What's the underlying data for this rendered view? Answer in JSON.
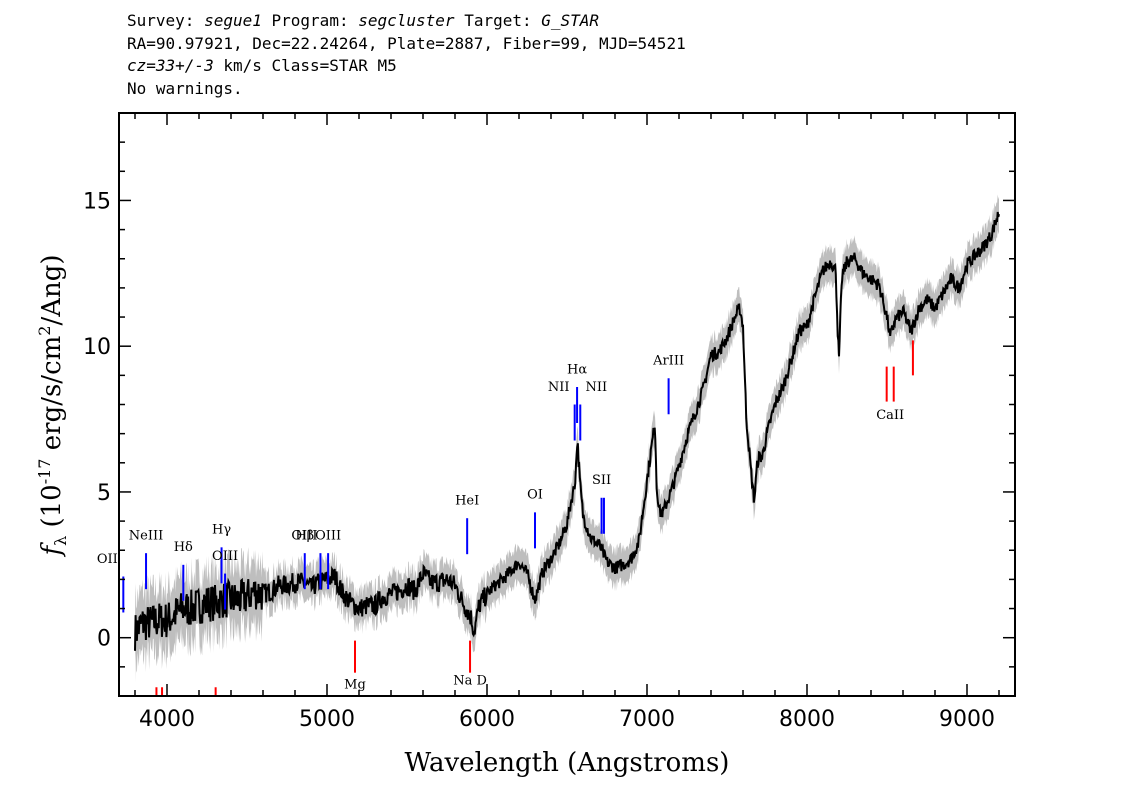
{
  "header": {
    "survey_label": "Survey:",
    "survey": "segue1",
    "program_label": "Program:",
    "program": "segcluster",
    "target_label": "Target:",
    "target": "G_STAR",
    "line2": "RA=90.97921, Dec=22.24264, Plate=2887, Fiber=99, MJD=54521",
    "cz_value": "cz=33+/-3",
    "cz_rest": " km/s Class=STAR M5",
    "line4": "No warnings."
  },
  "chart_data": {
    "type": "line",
    "xlabel": "Wavelength (Angstroms)",
    "ylabel": "f_λ (10^-17 erg/s/cm^2/Ang)",
    "ylabel_parts": {
      "f": "f",
      "sub": "λ",
      "a": " (10",
      "exp1": "-17",
      "b": " erg/s/cm",
      "exp2": "2",
      "c": "/Ang)"
    },
    "xlim": [
      3700,
      9300
    ],
    "ylim": [
      -2,
      18
    ],
    "x_ticks": [
      4000,
      5000,
      6000,
      7000,
      8000,
      9000
    ],
    "x_tick_labels": [
      "4000",
      "5000",
      "6000",
      "7000",
      "8000",
      "9000"
    ],
    "y_ticks": [
      0,
      5,
      10,
      15
    ],
    "y_tick_labels": [
      "0",
      "5",
      "10",
      "15"
    ],
    "colors": {
      "spectrum": "#000000",
      "error_band": "#bebebe",
      "emission": "#0000ff",
      "absorption": "#ff0000"
    },
    "series": [
      {
        "x": [
          3800,
          3850,
          3900,
          3950,
          4000,
          4050,
          4100,
          4150,
          4200,
          4250,
          4300,
          4350,
          4400,
          4450,
          4500,
          4550,
          4600,
          4650,
          4700,
          4750,
          4800,
          4850,
          4900,
          4950,
          5000,
          5050,
          5100,
          5150,
          5200,
          5250,
          5300,
          5350,
          5400,
          5450,
          5500,
          5550,
          5600,
          5650,
          5700,
          5750,
          5800,
          5850,
          5900,
          5920,
          5950,
          6000,
          6050,
          6100,
          6150,
          6200,
          6250,
          6300,
          6350,
          6400,
          6450,
          6500,
          6530,
          6550,
          6565,
          6580,
          6600,
          6650,
          6700,
          6750,
          6800,
          6850,
          6900,
          6950,
          7000,
          7030,
          7050,
          7060,
          7080,
          7100,
          7150,
          7200,
          7250,
          7300,
          7350,
          7400,
          7450,
          7500,
          7550,
          7580,
          7600,
          7620,
          7650,
          7670,
          7690,
          7700,
          7720,
          7750,
          7800,
          7850,
          7900,
          7950,
          8000,
          8050,
          8100,
          8150,
          8180,
          8190,
          8200,
          8210,
          8220,
          8250,
          8300,
          8350,
          8400,
          8450,
          8500,
          8520,
          8550,
          8600,
          8650,
          8700,
          8750,
          8800,
          8850,
          8900,
          8950,
          9000,
          9050,
          9100,
          9150,
          9200
        ],
        "y": [
          0.2,
          0.5,
          0.5,
          0.6,
          0.6,
          0.8,
          1.0,
          1.0,
          1.1,
          1.2,
          1.2,
          1.3,
          1.3,
          1.3,
          1.4,
          1.6,
          1.5,
          1.6,
          1.8,
          1.8,
          1.9,
          1.9,
          1.7,
          1.9,
          2.0,
          2.1,
          1.5,
          1.2,
          1.0,
          1.1,
          1.1,
          1.4,
          1.5,
          1.6,
          1.8,
          1.6,
          2.2,
          1.9,
          1.9,
          2.0,
          1.8,
          1.2,
          0.7,
          0.2,
          1.1,
          1.5,
          1.8,
          2.0,
          2.3,
          2.6,
          2.2,
          1.3,
          2.3,
          2.7,
          3.2,
          3.9,
          4.8,
          5.3,
          6.8,
          5.4,
          4.2,
          3.4,
          3.2,
          2.6,
          2.4,
          2.5,
          2.7,
          3.3,
          5.4,
          6.6,
          7.4,
          5.2,
          4.3,
          4.3,
          5.0,
          5.9,
          6.9,
          7.7,
          8.5,
          9.7,
          9.8,
          10.3,
          11.0,
          11.3,
          10.7,
          7.6,
          5.7,
          4.7,
          6.0,
          6.2,
          6.2,
          7.0,
          8.0,
          8.6,
          9.5,
          10.5,
          10.7,
          11.7,
          12.6,
          12.9,
          12.6,
          10.8,
          9.5,
          11.2,
          12.4,
          12.9,
          13.0,
          12.5,
          12.3,
          12.1,
          11.0,
          10.3,
          10.9,
          11.2,
          10.5,
          11.3,
          11.6,
          11.3,
          11.8,
          12.3,
          12.0,
          12.8,
          13.1,
          13.4,
          13.8,
          14.6
        ],
        "y_err": 0.6
      }
    ],
    "emission_lines": [
      {
        "name": "OII",
        "wavelength": 3727,
        "label_y": 2.5
      },
      {
        "name": "NeIII",
        "wavelength": 3869,
        "label_y": 3.3
      },
      {
        "name": "Hδ",
        "wavelength": 4102,
        "label_y": 2.9
      },
      {
        "name": "Hγ",
        "wavelength": 4341,
        "label_y": 3.5
      },
      {
        "name": "OIII",
        "wavelength": 4363,
        "label_y": 2.6
      },
      {
        "name": "Hβ",
        "wavelength": 4861,
        "label_y": 3.3
      },
      {
        "name": "OIII",
        "wavelength": 4959,
        "label_y": 3.3
      },
      {
        "name": "OIII",
        "wavelength": 5007,
        "label_y": 3.3
      },
      {
        "name": "HeI",
        "wavelength": 5876,
        "label_y": 4.5
      },
      {
        "name": "OI",
        "wavelength": 6300,
        "label_y": 4.7
      },
      {
        "name": "NII",
        "wavelength": 6548,
        "label_y": 8.4
      },
      {
        "name": "Hα",
        "wavelength": 6563,
        "label_y": 9.0
      },
      {
        "name": "NII",
        "wavelength": 6583,
        "label_y": 8.4
      },
      {
        "name": "SII",
        "wavelength": 6716,
        "label_y": 5.2
      },
      {
        "name": "SII",
        "wavelength": 6731,
        "label_y": 5.2
      },
      {
        "name": "ArIII",
        "wavelength": 7135,
        "label_y": 9.3
      }
    ],
    "absorption_lines": [
      {
        "name": "",
        "wavelength": 3934
      },
      {
        "name": "",
        "wavelength": 3969
      },
      {
        "name": "",
        "wavelength": 4304
      },
      {
        "name": "Mg",
        "wavelength": 5175
      },
      {
        "name": "Na D",
        "wavelength": 5894
      },
      {
        "name": "CaII",
        "wavelength": 8498
      },
      {
        "name": "CaII",
        "wavelength": 8542
      },
      {
        "name": "CaII",
        "wavelength": 8662
      }
    ],
    "absorption_label_texts": {
      "mg": "Mg",
      "nad": "Na D",
      "caii": "CaII"
    }
  }
}
